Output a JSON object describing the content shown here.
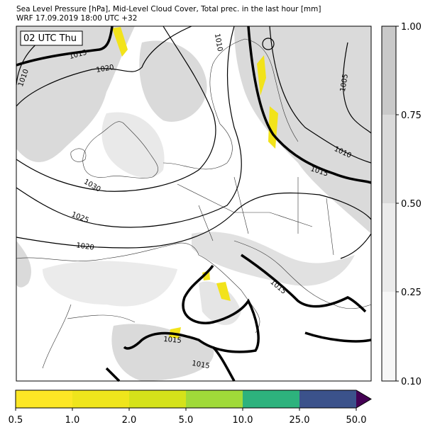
{
  "header": {
    "line1": "Sea Level Pressure [hPa], Mid-Level Cloud Cover, Total prec. in the last hour [mm]",
    "line2": "WRF 17.09.2019 18:00 UTC +32"
  },
  "map": {
    "time_label": "02 UTC Thu",
    "contour_labels": [
      "1015",
      "1020",
      "1010",
      "1030",
      "1025",
      "1020",
      "1005",
      "1010",
      "1015",
      "1015",
      "1015",
      "1015",
      "1010"
    ]
  },
  "cloud_colorbar": {
    "ticks": [
      "1.00",
      "0.75",
      "0.50",
      "0.25",
      "0.10"
    ],
    "colors": [
      "#c9c9c9",
      "#dadada",
      "#ebebeb",
      "#f7f7f7"
    ]
  },
  "precip_colorbar": {
    "ticks": [
      "0.5",
      "1.0",
      "2.0",
      "5.0",
      "10.0",
      "25.0",
      "50.0"
    ],
    "colors": [
      "#fde725",
      "#efe51c",
      "#d5e21a",
      "#a0da39",
      "#2db27d",
      "#3b528b",
      "#440154"
    ]
  }
}
